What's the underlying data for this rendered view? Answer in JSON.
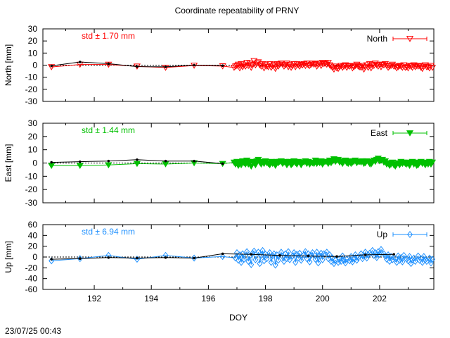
{
  "chart_data": [
    {
      "type": "line",
      "title": "Coordinate repeatability of PRNY",
      "xlabel": "",
      "ylabel": "North [mm]",
      "xlim": [
        190.2,
        203.9
      ],
      "ylim": [
        -30,
        30
      ],
      "yticks": [
        -30,
        -20,
        -10,
        0,
        10,
        20,
        30
      ],
      "xticks": [
        192,
        194,
        196,
        198,
        200,
        202
      ],
      "show_xtick_labels": false,
      "legend": "North",
      "annotation": "std ± 1.70 mm",
      "color": "#ff0000",
      "marker": "triangle-open",
      "daily_x": [
        190.5,
        191.5,
        192.5,
        193.5,
        194.5,
        195.5,
        196.5
      ],
      "daily_y": [
        -0.6,
        2.6,
        1.2,
        -1.2,
        -1.4,
        0.0,
        -0.4
      ],
      "series": [
        {
          "name": "North",
          "x": [
            190.5,
            191.5,
            192.5,
            193.5,
            194.5,
            195.5,
            196.5,
            196.9,
            197.3,
            197.7,
            198.1,
            198.5,
            198.9,
            199.3,
            199.7,
            200.1,
            200.5,
            200.9,
            201.3,
            201.7,
            202.1,
            202.5,
            202.9,
            203.3,
            203.7
          ],
          "y": [
            -1.5,
            0.5,
            0.5,
            -1.0,
            -2.0,
            -0.3,
            -0.8,
            -2.0,
            -1.0,
            1.5,
            -1.5,
            0.5,
            -2.0,
            0.0,
            0.5,
            1.5,
            -2.5,
            -0.5,
            -1.5,
            -2.5,
            0.5,
            -1.0,
            -2.0,
            -0.5,
            -1.5
          ]
        },
        {
          "name": "North-dense",
          "x": [
            196.95,
            197.0,
            197.05,
            197.1,
            197.15,
            197.2,
            197.25,
            197.35,
            197.4,
            197.45,
            197.5,
            197.55,
            197.6,
            197.65,
            197.75,
            197.8,
            197.85,
            197.9,
            197.95,
            198.0,
            198.05,
            198.15,
            198.2,
            198.25,
            198.3,
            198.35,
            198.4,
            198.45,
            198.55,
            198.6,
            198.65,
            198.7,
            198.75,
            198.8,
            198.85,
            198.95,
            199.0,
            199.05,
            199.1,
            199.15,
            199.2,
            199.25,
            199.35,
            199.4,
            199.45,
            199.5,
            199.55,
            199.6,
            199.65,
            199.75,
            199.8,
            199.85,
            199.9,
            199.95,
            200.0,
            200.05,
            200.15,
            200.2,
            200.25,
            200.3,
            200.35,
            200.4,
            200.45,
            200.55,
            200.6,
            200.65,
            200.7,
            200.75,
            200.8,
            200.85,
            200.95,
            201.0,
            201.05,
            201.1,
            201.15,
            201.2,
            201.25,
            201.35,
            201.4,
            201.45,
            201.5,
            201.55,
            201.6,
            201.65,
            201.75,
            201.8,
            201.85,
            201.9,
            201.95,
            202.0,
            202.05,
            202.15,
            202.2,
            202.25,
            202.3,
            202.35,
            202.4,
            202.45,
            202.55,
            202.6,
            202.65,
            202.7,
            202.75,
            202.8,
            202.85,
            202.95,
            203.0,
            203.05,
            203.1,
            203.15,
            203.2,
            203.25,
            203.35,
            203.4,
            203.45,
            203.5,
            203.55,
            203.6,
            203.65,
            203.75,
            203.8,
            203.85
          ],
          "y": [
            -1.0,
            -0.5,
            0.5,
            -2.5,
            1.0,
            -1.5,
            0.0,
            2.0,
            -0.5,
            1.5,
            -2.0,
            0.5,
            3.5,
            0.0,
            2.5,
            0.0,
            -1.0,
            1.0,
            -2.5,
            0.5,
            -1.0,
            1.0,
            -2.0,
            -0.5,
            0.5,
            -3.0,
            1.0,
            -1.0,
            1.5,
            0.5,
            -1.0,
            0.0,
            1.5,
            -1.5,
            0.5,
            -0.5,
            1.0,
            -1.5,
            1.0,
            0.0,
            -1.0,
            0.5,
            1.0,
            -0.5,
            1.5,
            0.0,
            -0.5,
            0.5,
            1.5,
            1.0,
            -1.0,
            0.5,
            1.5,
            -0.5,
            2.0,
            1.0,
            0.5,
            2.0,
            0.0,
            -1.0,
            -2.0,
            -3.5,
            -1.0,
            -3.0,
            -1.5,
            -0.5,
            -2.0,
            -1.0,
            0.0,
            -2.0,
            -1.0,
            -0.5,
            -2.5,
            -1.5,
            -0.5,
            0.5,
            -1.0,
            -2.0,
            -0.5,
            -3.5,
            -1.5,
            0.0,
            -2.0,
            1.0,
            0.5,
            -0.5,
            1.5,
            0.0,
            -1.0,
            0.5,
            -1.5,
            0.0,
            1.0,
            -0.5,
            -2.0,
            -1.0,
            -0.5,
            0.5,
            -1.0,
            -2.5,
            -1.5,
            -0.5,
            -1.0,
            -2.0,
            0.0,
            -1.5,
            -2.5,
            -0.5,
            -1.0,
            -2.0,
            0.0,
            -1.5,
            -1.0,
            -0.5,
            -2.0,
            -3.0,
            -1.0,
            0.0,
            -1.5,
            -2.5,
            -0.5,
            -2.0
          ]
        }
      ]
    },
    {
      "type": "line",
      "xlabel": "",
      "ylabel": "East [mm]",
      "xlim": [
        190.2,
        203.9
      ],
      "ylim": [
        -30,
        30
      ],
      "yticks": [
        -30,
        -20,
        -10,
        0,
        10,
        20,
        30
      ],
      "xticks": [
        192,
        194,
        196,
        198,
        200,
        202
      ],
      "show_xtick_labels": false,
      "legend": "East",
      "annotation": "std ± 1.44 mm",
      "color": "#00c000",
      "marker": "triangle-filled",
      "daily_x": [
        190.5,
        191.5,
        192.5,
        193.5,
        194.5,
        195.5,
        196.5
      ],
      "daily_y": [
        0.5,
        1.0,
        1.5,
        2.5,
        1.5,
        1.5,
        -0.5
      ],
      "series": [
        {
          "name": "East",
          "x": [
            190.5,
            191.5,
            192.5,
            193.5,
            194.5,
            195.5,
            196.5,
            196.9,
            197.3,
            197.7,
            198.1,
            198.5,
            198.9,
            199.3,
            199.7,
            200.1,
            200.5,
            200.9,
            201.3,
            201.7,
            202.1,
            202.5,
            202.9,
            203.3,
            203.7
          ],
          "y": [
            -2.0,
            -2.0,
            -1.5,
            -0.5,
            -0.8,
            0.0,
            -0.5,
            0.5,
            -1.0,
            1.5,
            -0.5,
            1.0,
            -1.5,
            0.5,
            -0.5,
            1.0,
            2.0,
            -0.5,
            1.0,
            -1.0,
            2.5,
            -1.5,
            -0.5,
            -2.0,
            -1.0
          ]
        },
        {
          "name": "East-dense",
          "x": [
            196.95,
            197.0,
            197.05,
            197.1,
            197.15,
            197.2,
            197.25,
            197.35,
            197.4,
            197.45,
            197.5,
            197.55,
            197.6,
            197.65,
            197.75,
            197.8,
            197.85,
            197.9,
            197.95,
            198.0,
            198.05,
            198.15,
            198.2,
            198.25,
            198.3,
            198.35,
            198.4,
            198.45,
            198.55,
            198.6,
            198.65,
            198.7,
            198.75,
            198.8,
            198.85,
            198.95,
            199.0,
            199.05,
            199.1,
            199.15,
            199.2,
            199.25,
            199.35,
            199.4,
            199.45,
            199.5,
            199.55,
            199.6,
            199.65,
            199.75,
            199.8,
            199.85,
            199.9,
            199.95,
            200.0,
            200.05,
            200.15,
            200.2,
            200.25,
            200.3,
            200.35,
            200.4,
            200.45,
            200.55,
            200.6,
            200.65,
            200.7,
            200.75,
            200.8,
            200.85,
            200.95,
            201.0,
            201.05,
            201.1,
            201.15,
            201.2,
            201.25,
            201.35,
            201.4,
            201.45,
            201.5,
            201.55,
            201.6,
            201.65,
            201.75,
            201.8,
            201.85,
            201.9,
            201.95,
            202.0,
            202.05,
            202.15,
            202.2,
            202.25,
            202.3,
            202.35,
            202.4,
            202.45,
            202.55,
            202.6,
            202.65,
            202.7,
            202.75,
            202.8,
            202.85,
            202.95,
            203.0,
            203.05,
            203.1,
            203.15,
            203.2,
            203.25,
            203.35,
            203.4,
            203.45,
            203.5,
            203.55,
            203.6,
            203.65,
            203.75,
            203.8,
            203.85
          ],
          "y": [
            -1.0,
            1.0,
            -2.0,
            0.5,
            -1.5,
            1.5,
            0.0,
            2.0,
            -1.0,
            0.5,
            -2.5,
            1.0,
            0.0,
            -1.5,
            2.5,
            0.5,
            -1.0,
            1.0,
            -0.5,
            1.5,
            0.0,
            -1.5,
            1.0,
            -0.5,
            0.5,
            -2.0,
            1.0,
            0.0,
            1.5,
            -0.5,
            0.5,
            1.0,
            -1.5,
            0.0,
            1.0,
            -0.5,
            1.5,
            0.0,
            -1.0,
            1.0,
            0.5,
            -1.5,
            0.5,
            1.5,
            -0.5,
            1.0,
            -1.0,
            0.5,
            0.0,
            2.0,
            -0.5,
            1.0,
            0.0,
            1.5,
            -1.0,
            0.5,
            1.0,
            -0.5,
            2.0,
            0.0,
            1.5,
            3.0,
            1.0,
            2.5,
            0.5,
            1.5,
            -0.5,
            1.0,
            2.0,
            0.0,
            1.5,
            -0.5,
            0.5,
            1.0,
            2.0,
            0.0,
            1.0,
            0.5,
            1.5,
            -0.5,
            0.0,
            1.5,
            1.0,
            -0.5,
            0.5,
            2.0,
            1.0,
            2.5,
            3.5,
            1.5,
            2.0,
            0.5,
            1.5,
            -1.0,
            0.0,
            -2.0,
            -1.0,
            0.5,
            -2.5,
            -1.0,
            0.0,
            -1.5,
            1.0,
            -0.5,
            0.5,
            -1.0,
            0.5,
            -2.0,
            0.0,
            1.0,
            -1.0,
            0.5,
            -1.5,
            0.0,
            1.0,
            -0.5,
            0.5,
            -1.5,
            0.0,
            1.0,
            -1.0,
            0.5
          ]
        }
      ]
    },
    {
      "type": "line",
      "xlabel": "DOY",
      "ylabel": "Up [mm]",
      "xlim": [
        190.2,
        203.9
      ],
      "ylim": [
        -60,
        60
      ],
      "yticks": [
        -60,
        -40,
        -20,
        0,
        20,
        40,
        60
      ],
      "xticks": [
        192,
        194,
        196,
        198,
        200,
        202
      ],
      "show_xtick_labels": true,
      "legend": "Up",
      "annotation": "std ± 6.94 mm",
      "color": "#1e90ff",
      "marker": "diamond-open",
      "daily_x": [
        190.5,
        191.5,
        192.5,
        193.5,
        194.5,
        195.5,
        196.5,
        197.5,
        198.5,
        199.5,
        200.5,
        201.5,
        202.5
      ],
      "daily_y": [
        -4.0,
        -3.0,
        -1.0,
        -2.0,
        -1.0,
        -2.0,
        6.0,
        5.0,
        3.0,
        2.0,
        1.0,
        4.0,
        5.0
      ],
      "series": [
        {
          "name": "Up",
          "x": [
            190.5,
            191.5,
            192.5,
            193.5,
            194.5,
            195.5,
            196.5
          ],
          "y": [
            -7.0,
            -3.0,
            3.0,
            -4.0,
            3.0,
            -2.0,
            1.0
          ]
        },
        {
          "name": "Up-dense",
          "x": [
            196.95,
            197.0,
            197.05,
            197.1,
            197.15,
            197.2,
            197.25,
            197.35,
            197.4,
            197.45,
            197.5,
            197.55,
            197.6,
            197.65,
            197.75,
            197.8,
            197.85,
            197.9,
            197.95,
            198.0,
            198.05,
            198.15,
            198.2,
            198.25,
            198.3,
            198.35,
            198.4,
            198.45,
            198.55,
            198.6,
            198.65,
            198.7,
            198.75,
            198.8,
            198.85,
            198.95,
            199.0,
            199.05,
            199.1,
            199.15,
            199.2,
            199.25,
            199.35,
            199.4,
            199.45,
            199.5,
            199.55,
            199.6,
            199.65,
            199.75,
            199.8,
            199.85,
            199.9,
            199.95,
            200.0,
            200.05,
            200.15,
            200.2,
            200.25,
            200.3,
            200.35,
            200.4,
            200.45,
            200.55,
            200.6,
            200.65,
            200.7,
            200.75,
            200.8,
            200.85,
            200.95,
            201.0,
            201.05,
            201.1,
            201.15,
            201.2,
            201.25,
            201.35,
            201.4,
            201.45,
            201.5,
            201.55,
            201.6,
            201.65,
            201.75,
            201.8,
            201.85,
            201.9,
            201.95,
            202.0,
            202.05,
            202.15,
            202.2,
            202.25,
            202.3,
            202.35,
            202.4,
            202.45,
            202.55,
            202.6,
            202.65,
            202.7,
            202.75,
            202.8,
            202.85,
            202.95,
            203.0,
            203.05,
            203.1,
            203.15,
            203.2,
            203.25,
            203.35,
            203.4,
            203.45,
            203.5,
            203.55,
            203.6,
            203.65,
            203.75,
            203.8,
            203.85
          ],
          "y": [
            -2.0,
            8.0,
            -6.0,
            4.0,
            -10.0,
            6.0,
            -4.0,
            10.0,
            -8.0,
            2.0,
            -14.0,
            7.0,
            11.0,
            -5.0,
            9.0,
            -12.0,
            3.0,
            12.0,
            -7.0,
            5.0,
            -3.0,
            8.0,
            -10.0,
            2.0,
            6.0,
            -15.0,
            4.0,
            -6.0,
            9.0,
            1.0,
            -8.0,
            6.0,
            -3.0,
            10.0,
            -5.0,
            2.0,
            8.0,
            -10.0,
            5.0,
            -2.0,
            7.0,
            -6.0,
            4.0,
            10.0,
            -3.0,
            6.0,
            -9.0,
            3.0,
            8.0,
            -4.0,
            9.0,
            -11.0,
            2.0,
            7.0,
            -5.0,
            6.0,
            9.0,
            -3.0,
            4.0,
            -8.0,
            -2.0,
            -12.0,
            -6.0,
            -10.0,
            -3.0,
            -8.0,
            2.0,
            -6.0,
            -11.0,
            -4.0,
            -7.0,
            1.0,
            -9.0,
            -3.0,
            4.0,
            -6.0,
            -1.0,
            6.0,
            -3.0,
            2.0,
            9.0,
            -2.0,
            4.0,
            7.0,
            12.0,
            3.0,
            8.0,
            -1.0,
            10.0,
            5.0,
            14.0,
            6.0,
            2.0,
            -4.0,
            4.0,
            -8.0,
            1.0,
            -5.0,
            -3.0,
            -10.0,
            2.0,
            -6.0,
            -1.0,
            -9.0,
            3.0,
            -4.0,
            -7.0,
            1.0,
            -12.0,
            -5.0,
            -2.0,
            -8.0,
            2.0,
            -6.0,
            -3.0,
            -10.0,
            1.0,
            -5.0,
            -8.0,
            -2.0,
            -11.0,
            -4.0
          ]
        }
      ]
    }
  ],
  "timestamp": "23/07/25 00:43"
}
